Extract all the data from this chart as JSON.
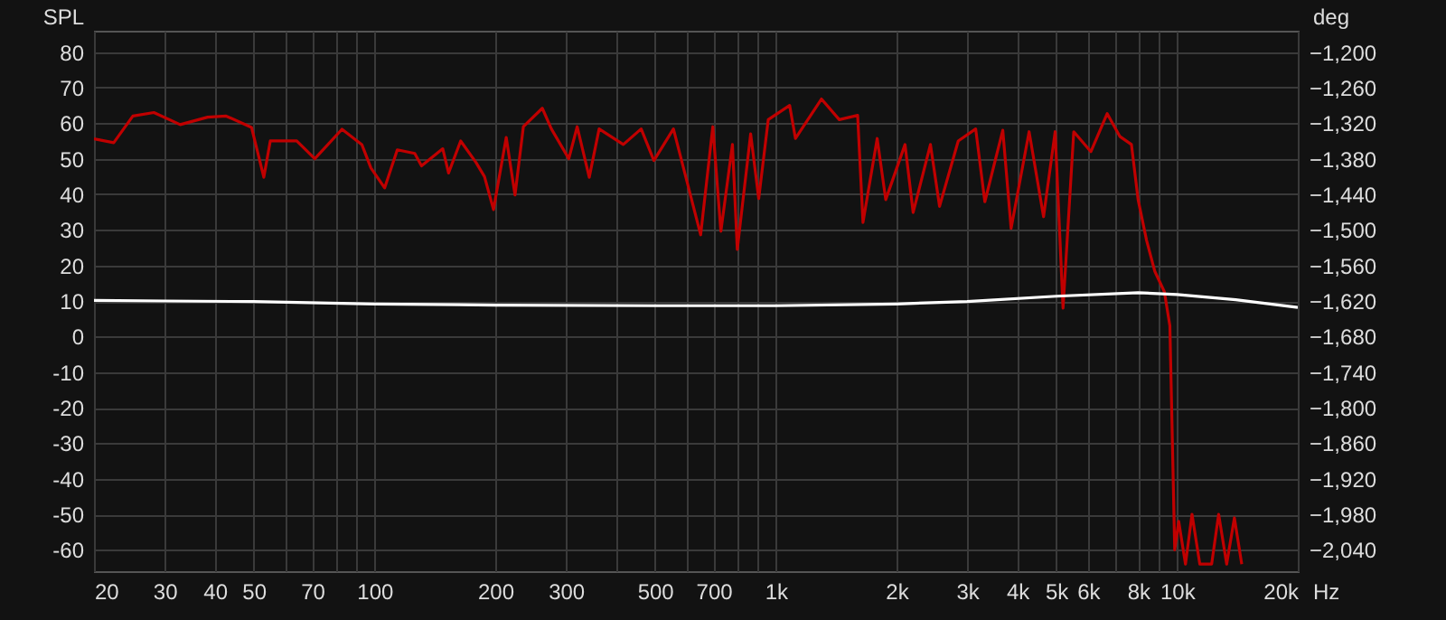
{
  "chart_data": {
    "type": "line",
    "ylabel": "SPL",
    "y2label": "deg",
    "log": "x",
    "grid": true,
    "marker": "none",
    "line_style": "solid",
    "xlim": [
      20,
      20000
    ],
    "xticks": [
      20,
      30,
      40,
      50,
      {
        "value": 60,
        "label": null
      },
      70,
      {
        "value": 80,
        "label": null
      },
      {
        "value": 90,
        "label": null
      },
      100,
      200,
      300,
      {
        "value": 400,
        "label": null
      },
      500,
      {
        "value": 600,
        "label": null
      },
      700,
      {
        "value": 800,
        "label": null
      },
      {
        "value": 900,
        "label": null
      },
      {
        "value": 1000,
        "label": "1k"
      },
      {
        "value": 2000,
        "label": "2k"
      },
      {
        "value": 3000,
        "label": "3k"
      },
      {
        "value": 4000,
        "label": "4k"
      },
      {
        "value": 5000,
        "label": "5k"
      },
      {
        "value": 6000,
        "label": "6k"
      },
      {
        "value": 7000,
        "label": null
      },
      {
        "value": 8000,
        "label": "8k"
      },
      {
        "value": 9000,
        "label": null
      },
      {
        "value": 10000,
        "label": "10k"
      },
      {
        "value": 20000,
        "label": "20k"
      }
    ],
    "xlabel": "Hz",
    "ylim": [
      -66,
      86
    ],
    "yticks": [
      80,
      70,
      60,
      50,
      40,
      30,
      20,
      10,
      0,
      -10,
      -20,
      -30,
      -40,
      -50,
      -60
    ],
    "y2lim": [
      -2076,
      -1164
    ],
    "y2ticks": [
      {
        "value": -1200,
        "label": "−1,200"
      },
      {
        "value": -1260,
        "label": "−1,260"
      },
      {
        "value": -1320,
        "label": "−1,320"
      },
      {
        "value": -1380,
        "label": "−1,380"
      },
      {
        "value": -1440,
        "label": "−1,440"
      },
      {
        "value": -1500,
        "label": "−1,500"
      },
      {
        "value": -1560,
        "label": "−1,560"
      },
      {
        "value": -1620,
        "label": "−1,620"
      },
      {
        "value": -1680,
        "label": "−1,680"
      },
      {
        "value": -1740,
        "label": "−1,740"
      },
      {
        "value": -1800,
        "label": "−1,800"
      },
      {
        "value": -1860,
        "label": "−1,860"
      },
      {
        "value": -1920,
        "label": "−1,920"
      },
      {
        "value": -1980,
        "label": "−1,980"
      },
      {
        "value": -2040,
        "label": "−2,040"
      }
    ],
    "series": [
      {
        "color": "#c00000",
        "x": [
          20,
          22.4,
          25,
          28.2,
          32.8,
          38.4,
          42.7,
          49.4,
          53,
          55,
          64,
          71,
          83,
          93,
          98,
          106,
          114,
          126,
          131,
          148,
          153,
          164,
          179,
          188,
          198,
          213,
          224,
          235,
          262,
          276,
          305,
          320,
          343,
          363,
          417,
          462,
          497,
          556,
          650,
          697,
          730,
          780,
          802,
          866,
          907,
          958,
          1083,
          1120,
          1300,
          1440,
          1600,
          1650,
          1790,
          1880,
          2100,
          2200,
          2430,
          2560,
          2850,
          3150,
          3320,
          3680,
          3860,
          4280,
          4650,
          4970,
          5200,
          5530,
          6100,
          6700,
          7200,
          7700,
          8000,
          8400,
          8800,
          9300,
          9600,
          9870,
          10100,
          10500,
          10900,
          11400,
          12200,
          12700,
          13300,
          13900,
          14500
        ],
        "values": [
          55.6,
          54.5,
          62,
          63,
          59.6,
          61.7,
          62,
          58.8,
          44.8,
          55,
          55,
          50,
          58.3,
          54,
          47.4,
          41.8,
          52.5,
          51.5,
          48,
          52.8,
          46,
          55,
          49,
          45,
          35.7,
          56,
          39.8,
          59,
          64.2,
          58.4,
          50,
          59,
          44.8,
          58.4,
          54,
          58.4,
          49.5,
          58.4,
          28.6,
          59,
          29.6,
          54,
          24.5,
          57,
          38.8,
          61,
          65,
          55.7,
          66.8,
          61,
          62.2,
          32.1,
          55.7,
          38.5,
          54,
          34.9,
          54,
          36.6,
          55,
          58.4,
          37.9,
          58,
          30.4,
          57.6,
          33.7,
          57.6,
          8,
          57.6,
          52,
          62.7,
          56.3,
          54,
          38.5,
          27,
          18.4,
          12.6,
          3,
          -60,
          -52,
          -64,
          -50,
          -64,
          -64,
          -50,
          -64,
          -51,
          -64
        ]
      },
      {
        "color": "#ffffff",
        "axis": "y2",
        "x": [
          20,
          30,
          50,
          100,
          200,
          500,
          1000,
          2000,
          3000,
          5000,
          8000,
          10000,
          14000,
          20000
        ],
        "values": [
          -1619,
          -1620,
          -1621,
          -1625,
          -1627,
          -1628,
          -1628,
          -1625,
          -1621,
          -1612,
          -1606,
          -1609,
          -1618,
          -1631
        ]
      }
    ]
  }
}
